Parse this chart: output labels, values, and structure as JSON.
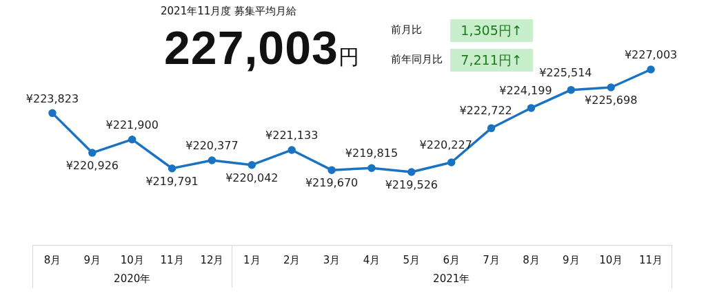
{
  "chart_data": {
    "type": "line",
    "title": "2021年11月度 募集平均月給",
    "subtitle": "227,003円",
    "categories": [
      "8月",
      "9月",
      "10月",
      "11月",
      "12月",
      "1月",
      "2月",
      "3月",
      "4月",
      "5月",
      "6月",
      "7月",
      "8月",
      "9月",
      "10月",
      "11月"
    ],
    "series": [
      {
        "color": "#1a73c2",
        "values": [
          223823,
          220926,
          221900,
          219791,
          220377,
          220042,
          221133,
          219670,
          219815,
          219526,
          220227,
          222722,
          224199,
          225514,
          225698,
          227003
        ],
        "value_labels": [
          "¥223,823",
          "¥220,926",
          "¥221,900",
          "¥219,791",
          "¥220,377",
          "¥220,042",
          "¥221,133",
          "¥219,670",
          "¥219,815",
          "¥219,526",
          "¥220,227",
          "¥222,722",
          "¥224,199",
          "¥225,514",
          "¥225,698",
          "¥227,003"
        ]
      }
    ],
    "tick_labels": "x",
    "grid": false,
    "legend": false,
    "marker": "circle",
    "line_style": "solid",
    "annotations": [
      "前月比",
      "1,305円↑",
      "前年同月比",
      "7,211円↑",
      "2020年",
      "2021年"
    ]
  }
}
